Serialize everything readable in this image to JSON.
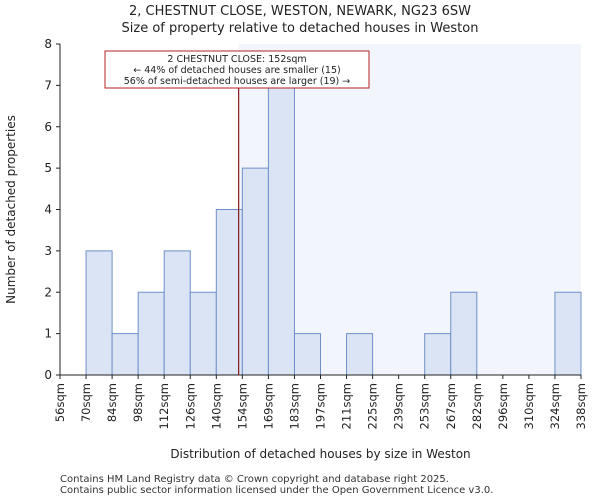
{
  "chart_data": {
    "type": "bar",
    "title_line1": "2, CHESTNUT CLOSE, WESTON, NEWARK, NG23 6SW",
    "title_line2": "Size of property relative to detached houses in Weston",
    "xlabel": "Distribution of detached houses by size in Weston",
    "ylabel": "Number of detached properties",
    "ylim": [
      0,
      8
    ],
    "yticks": [
      0,
      1,
      2,
      3,
      4,
      5,
      6,
      7,
      8
    ],
    "categories": [
      "56sqm",
      "70sqm",
      "84sqm",
      "98sqm",
      "112sqm",
      "126sqm",
      "140sqm",
      "154sqm",
      "169sqm",
      "183sqm",
      "197sqm",
      "211sqm",
      "225sqm",
      "239sqm",
      "253sqm",
      "267sqm",
      "282sqm",
      "296sqm",
      "310sqm",
      "324sqm",
      "338sqm"
    ],
    "bin_edges": [
      56,
      70,
      84,
      98,
      112,
      126,
      140,
      154,
      169,
      183,
      197,
      211,
      225,
      239,
      253,
      267,
      282,
      296,
      310,
      324,
      338
    ],
    "values": [
      0,
      3,
      1,
      2,
      3,
      2,
      4,
      5,
      7,
      1,
      0,
      1,
      0,
      0,
      1,
      2,
      0,
      0,
      0,
      2,
      0
    ],
    "marker": {
      "value": 152,
      "label": "2 CHESTNUT CLOSE: 152sqm"
    },
    "annotation": {
      "line1": "2 CHESTNUT CLOSE: 152sqm",
      "line2": "← 44% of detached houses are smaller (15)",
      "line3": "56% of semi-detached houses are larger (19) →"
    },
    "colors": {
      "bar_fill": "#dbe4f4",
      "bar_stroke": "#6f8fc9",
      "highlight_bg": "#f2f5fc",
      "marker": "#8b1a1a",
      "box_stroke": "#b22222"
    }
  },
  "footer": {
    "line1": "Contains HM Land Registry data © Crown copyright and database right 2025.",
    "line2": "Contains public sector information licensed under the Open Government Licence v3.0."
  }
}
